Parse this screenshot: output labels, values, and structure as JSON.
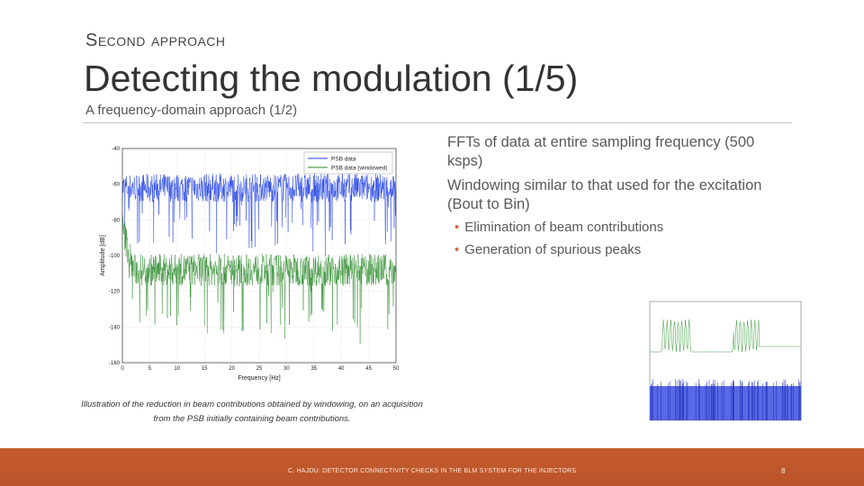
{
  "slide": {
    "kicker": "Second approach",
    "title": "Detecting the modulation (1/5)",
    "subtitle": "A frequency-domain approach (1/2)",
    "bullets": [
      "FFTs of data at entire sampling frequency (500 ksps)",
      "Windowing similar to that used for the excitation (Bout to Bin)"
    ],
    "sub_bullets": [
      "Elimination of beam contributions",
      "Generation of spurious peaks"
    ],
    "caption": "Illustration of the reduction in beam contributions obtained by windowing, on an acquisition from the PSB initially containing beam contributions.",
    "footer": "C. HAJDU: DETECTOR CONNECTIVITY CHECKS IN THE BLM SYSTEM FOR THE INJECTORS",
    "page_number": "8"
  },
  "colors": {
    "accent": "#c0582b",
    "series_blue": "#1f3fe6",
    "series_green": "#2a8a2a"
  },
  "chart_data": {
    "type": "line",
    "xlabel": "Frequency [Hz]",
    "ylabel": "Amplitude [dB]",
    "xlim": [
      0,
      50
    ],
    "ylim": [
      -160,
      -40
    ],
    "x_ticks": [
      "0",
      "5",
      "10",
      "15",
      "20",
      "25",
      "30",
      "35",
      "40",
      "45",
      "50"
    ],
    "y_ticks": [
      "-40",
      "-60",
      "-80",
      "-100",
      "-120",
      "-140",
      "-160"
    ],
    "grid": true,
    "legend_position": "top-right",
    "series": [
      {
        "name": "PSB data",
        "color": "#1f3fe6",
        "mean_db": -62,
        "spread_db": 8
      },
      {
        "name": "PSB data (windowed)",
        "color": "#2a8a2a",
        "mean_db": -108,
        "spread_db": 9
      }
    ]
  }
}
